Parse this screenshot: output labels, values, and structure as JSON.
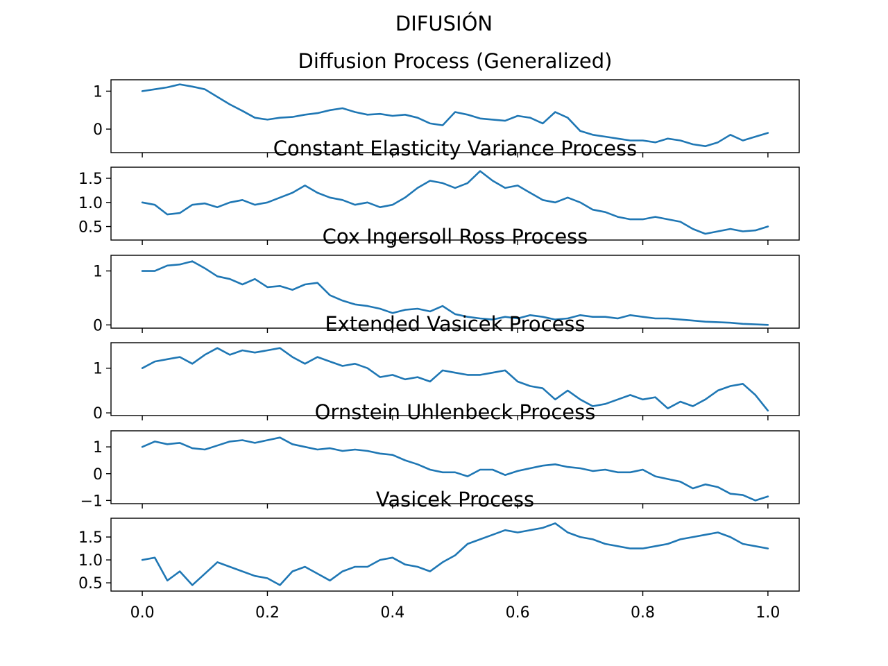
{
  "figure": {
    "suptitle": "DIFUSIÓN"
  },
  "chart_data": [
    {
      "type": "line",
      "title": "Diffusion Process (Generalized)",
      "xlim": [
        -0.05,
        1.05
      ],
      "ylim": [
        -0.62,
        1.3
      ],
      "yticks": [
        0,
        1
      ],
      "ytick_labels": [
        "0",
        "1"
      ],
      "xticks": [
        0.0,
        0.2,
        0.4,
        0.6,
        0.8,
        1.0
      ],
      "xtick_labels": [],
      "color": "#1f77b4",
      "x": [
        0.0,
        0.02,
        0.04,
        0.06,
        0.08,
        0.1,
        0.12,
        0.14,
        0.16,
        0.18,
        0.2,
        0.22,
        0.24,
        0.26,
        0.28,
        0.3,
        0.32,
        0.34,
        0.36,
        0.38,
        0.4,
        0.42,
        0.44,
        0.46,
        0.48,
        0.5,
        0.52,
        0.54,
        0.56,
        0.58,
        0.6,
        0.62,
        0.64,
        0.66,
        0.68,
        0.7,
        0.72,
        0.74,
        0.76,
        0.78,
        0.8,
        0.82,
        0.84,
        0.86,
        0.88,
        0.9,
        0.92,
        0.94,
        0.96,
        0.98,
        1.0
      ],
      "values": [
        1.0,
        1.05,
        1.1,
        1.18,
        1.12,
        1.05,
        0.85,
        0.65,
        0.48,
        0.3,
        0.25,
        0.3,
        0.32,
        0.38,
        0.42,
        0.5,
        0.55,
        0.45,
        0.38,
        0.4,
        0.35,
        0.38,
        0.3,
        0.15,
        0.1,
        0.45,
        0.38,
        0.28,
        0.25,
        0.22,
        0.35,
        0.3,
        0.15,
        0.45,
        0.3,
        -0.05,
        -0.15,
        -0.2,
        -0.25,
        -0.3,
        -0.3,
        -0.35,
        -0.25,
        -0.3,
        -0.4,
        -0.45,
        -0.35,
        -0.15,
        -0.3,
        -0.2,
        -0.1
      ]
    },
    {
      "type": "line",
      "title": "Constant Elasticity Variance Process",
      "xlim": [
        -0.05,
        1.05
      ],
      "ylim": [
        0.22,
        1.73
      ],
      "yticks": [
        0.5,
        1.0,
        1.5
      ],
      "ytick_labels": [
        "0.5",
        "1.0",
        "1.5"
      ],
      "xticks": [
        0.0,
        0.2,
        0.4,
        0.6,
        0.8,
        1.0
      ],
      "xtick_labels": [],
      "color": "#1f77b4",
      "x": [
        0.0,
        0.02,
        0.04,
        0.06,
        0.08,
        0.1,
        0.12,
        0.14,
        0.16,
        0.18,
        0.2,
        0.22,
        0.24,
        0.26,
        0.28,
        0.3,
        0.32,
        0.34,
        0.36,
        0.38,
        0.4,
        0.42,
        0.44,
        0.46,
        0.48,
        0.5,
        0.52,
        0.54,
        0.56,
        0.58,
        0.6,
        0.62,
        0.64,
        0.66,
        0.68,
        0.7,
        0.72,
        0.74,
        0.76,
        0.78,
        0.8,
        0.82,
        0.84,
        0.86,
        0.88,
        0.9,
        0.92,
        0.94,
        0.96,
        0.98,
        1.0
      ],
      "values": [
        1.0,
        0.95,
        0.75,
        0.78,
        0.95,
        0.98,
        0.9,
        1.0,
        1.05,
        0.95,
        1.0,
        1.1,
        1.2,
        1.35,
        1.2,
        1.1,
        1.05,
        0.95,
        1.0,
        0.9,
        0.95,
        1.1,
        1.3,
        1.45,
        1.4,
        1.3,
        1.4,
        1.65,
        1.45,
        1.3,
        1.35,
        1.2,
        1.05,
        1.0,
        1.1,
        1.0,
        0.85,
        0.8,
        0.7,
        0.65,
        0.65,
        0.7,
        0.65,
        0.6,
        0.45,
        0.35,
        0.4,
        0.45,
        0.4,
        0.42,
        0.5
      ]
    },
    {
      "type": "line",
      "title": "Cox Ingersoll Ross Process",
      "xlim": [
        -0.05,
        1.05
      ],
      "ylim": [
        -0.06,
        1.29
      ],
      "yticks": [
        0,
        1
      ],
      "ytick_labels": [
        "0",
        "1"
      ],
      "xticks": [
        0.0,
        0.2,
        0.4,
        0.6,
        0.8,
        1.0
      ],
      "xtick_labels": [],
      "color": "#1f77b4",
      "x": [
        0.0,
        0.02,
        0.04,
        0.06,
        0.08,
        0.1,
        0.12,
        0.14,
        0.16,
        0.18,
        0.2,
        0.22,
        0.24,
        0.26,
        0.28,
        0.3,
        0.32,
        0.34,
        0.36,
        0.38,
        0.4,
        0.42,
        0.44,
        0.46,
        0.48,
        0.5,
        0.52,
        0.54,
        0.56,
        0.58,
        0.6,
        0.62,
        0.64,
        0.66,
        0.68,
        0.7,
        0.72,
        0.74,
        0.76,
        0.78,
        0.8,
        0.82,
        0.84,
        0.86,
        0.88,
        0.9,
        0.92,
        0.94,
        0.96,
        0.98,
        1.0
      ],
      "values": [
        1.0,
        1.0,
        1.1,
        1.12,
        1.18,
        1.05,
        0.9,
        0.85,
        0.75,
        0.85,
        0.7,
        0.72,
        0.65,
        0.75,
        0.78,
        0.55,
        0.45,
        0.38,
        0.35,
        0.3,
        0.22,
        0.28,
        0.3,
        0.25,
        0.35,
        0.2,
        0.15,
        0.12,
        0.1,
        0.15,
        0.12,
        0.18,
        0.15,
        0.1,
        0.12,
        0.18,
        0.15,
        0.15,
        0.12,
        0.18,
        0.15,
        0.12,
        0.12,
        0.1,
        0.08,
        0.06,
        0.05,
        0.04,
        0.02,
        0.01,
        0.0
      ]
    },
    {
      "type": "line",
      "title": "Extended Vasicek Process",
      "xlim": [
        -0.05,
        1.05
      ],
      "ylim": [
        -0.06,
        1.57
      ],
      "yticks": [
        0,
        1
      ],
      "ytick_labels": [
        "0",
        "1"
      ],
      "xticks": [
        0.0,
        0.2,
        0.4,
        0.6,
        0.8,
        1.0
      ],
      "xtick_labels": [],
      "color": "#1f77b4",
      "x": [
        0.0,
        0.02,
        0.04,
        0.06,
        0.08,
        0.1,
        0.12,
        0.14,
        0.16,
        0.18,
        0.2,
        0.22,
        0.24,
        0.26,
        0.28,
        0.3,
        0.32,
        0.34,
        0.36,
        0.38,
        0.4,
        0.42,
        0.44,
        0.46,
        0.48,
        0.5,
        0.52,
        0.54,
        0.56,
        0.58,
        0.6,
        0.62,
        0.64,
        0.66,
        0.68,
        0.7,
        0.72,
        0.74,
        0.76,
        0.78,
        0.8,
        0.82,
        0.84,
        0.86,
        0.88,
        0.9,
        0.92,
        0.94,
        0.96,
        0.98,
        1.0
      ],
      "values": [
        1.0,
        1.15,
        1.2,
        1.25,
        1.1,
        1.3,
        1.45,
        1.3,
        1.4,
        1.35,
        1.4,
        1.45,
        1.25,
        1.1,
        1.25,
        1.15,
        1.05,
        1.1,
        1.0,
        0.8,
        0.85,
        0.75,
        0.8,
        0.7,
        0.95,
        0.9,
        0.85,
        0.85,
        0.9,
        0.95,
        0.7,
        0.6,
        0.55,
        0.3,
        0.5,
        0.3,
        0.15,
        0.2,
        0.3,
        0.4,
        0.3,
        0.35,
        0.1,
        0.25,
        0.15,
        0.3,
        0.5,
        0.6,
        0.65,
        0.4,
        0.05
      ]
    },
    {
      "type": "line",
      "title": "Ornstein Uhlenbeck Process",
      "xlim": [
        -0.05,
        1.05
      ],
      "ylim": [
        -1.12,
        1.6
      ],
      "yticks": [
        -1,
        0,
        1
      ],
      "ytick_labels": [
        "−1",
        "0",
        "1"
      ],
      "xticks": [
        0.0,
        0.2,
        0.4,
        0.6,
        0.8,
        1.0
      ],
      "xtick_labels": [],
      "color": "#1f77b4",
      "x": [
        0.0,
        0.02,
        0.04,
        0.06,
        0.08,
        0.1,
        0.12,
        0.14,
        0.16,
        0.18,
        0.2,
        0.22,
        0.24,
        0.26,
        0.28,
        0.3,
        0.32,
        0.34,
        0.36,
        0.38,
        0.4,
        0.42,
        0.44,
        0.46,
        0.48,
        0.5,
        0.52,
        0.54,
        0.56,
        0.58,
        0.6,
        0.62,
        0.64,
        0.66,
        0.68,
        0.7,
        0.72,
        0.74,
        0.76,
        0.78,
        0.8,
        0.82,
        0.84,
        0.86,
        0.88,
        0.9,
        0.92,
        0.94,
        0.96,
        0.98,
        1.0
      ],
      "values": [
        1.0,
        1.2,
        1.1,
        1.15,
        0.95,
        0.9,
        1.05,
        1.2,
        1.25,
        1.15,
        1.25,
        1.35,
        1.1,
        1.0,
        0.9,
        0.95,
        0.85,
        0.9,
        0.85,
        0.75,
        0.7,
        0.5,
        0.35,
        0.15,
        0.05,
        0.05,
        -0.1,
        0.15,
        0.15,
        -0.05,
        0.1,
        0.2,
        0.3,
        0.35,
        0.25,
        0.2,
        0.1,
        0.15,
        0.05,
        0.05,
        0.15,
        -0.1,
        -0.2,
        -0.3,
        -0.55,
        -0.4,
        -0.5,
        -0.75,
        -0.8,
        -1.0,
        -0.85
      ]
    },
    {
      "type": "line",
      "title": "Vasicek Process",
      "xlim": [
        -0.05,
        1.05
      ],
      "ylim": [
        0.32,
        1.91
      ],
      "yticks": [
        0.5,
        1.0,
        1.5
      ],
      "ytick_labels": [
        "0.5",
        "1.0",
        "1.5"
      ],
      "xticks": [
        0.0,
        0.2,
        0.4,
        0.6,
        0.8,
        1.0
      ],
      "xtick_labels": [
        "0.0",
        "0.2",
        "0.4",
        "0.6",
        "0.8",
        "1.0"
      ],
      "color": "#1f77b4",
      "x": [
        0.0,
        0.02,
        0.04,
        0.06,
        0.08,
        0.1,
        0.12,
        0.14,
        0.16,
        0.18,
        0.2,
        0.22,
        0.24,
        0.26,
        0.28,
        0.3,
        0.32,
        0.34,
        0.36,
        0.38,
        0.4,
        0.42,
        0.44,
        0.46,
        0.48,
        0.5,
        0.52,
        0.54,
        0.56,
        0.58,
        0.6,
        0.62,
        0.64,
        0.66,
        0.68,
        0.7,
        0.72,
        0.74,
        0.76,
        0.78,
        0.8,
        0.82,
        0.84,
        0.86,
        0.88,
        0.9,
        0.92,
        0.94,
        0.96,
        0.98,
        1.0
      ],
      "values": [
        1.0,
        1.05,
        0.55,
        0.75,
        0.45,
        0.7,
        0.95,
        0.85,
        0.75,
        0.65,
        0.6,
        0.45,
        0.75,
        0.85,
        0.7,
        0.55,
        0.75,
        0.85,
        0.85,
        1.0,
        1.05,
        0.9,
        0.85,
        0.75,
        0.95,
        1.1,
        1.35,
        1.45,
        1.55,
        1.65,
        1.6,
        1.65,
        1.7,
        1.8,
        1.6,
        1.5,
        1.45,
        1.35,
        1.3,
        1.25,
        1.25,
        1.3,
        1.35,
        1.45,
        1.5,
        1.55,
        1.6,
        1.5,
        1.35,
        1.3,
        1.25
      ]
    }
  ]
}
